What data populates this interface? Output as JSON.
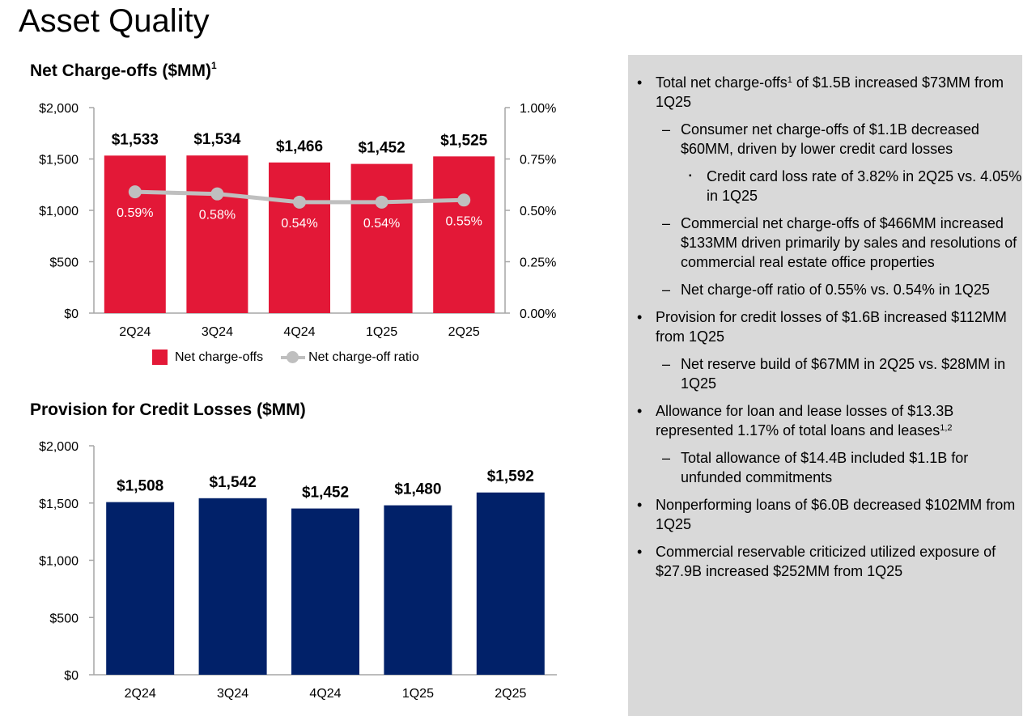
{
  "page": {
    "title": "Asset Quality"
  },
  "chart_data": [
    {
      "type": "bar",
      "title": "Net Charge-offs ($MM)",
      "title_footnote": "1",
      "categories": [
        "2Q24",
        "3Q24",
        "4Q24",
        "1Q25",
        "2Q25"
      ],
      "series": [
        {
          "name": "Net charge-offs",
          "type": "bar",
          "axis": "left",
          "color": "#e31837",
          "values": [
            1533,
            1534,
            1466,
            1452,
            1525
          ],
          "labels": [
            "$1,533",
            "$1,534",
            "$1,466",
            "$1,452",
            "$1,525"
          ]
        },
        {
          "name": "Net charge-off ratio",
          "type": "line",
          "axis": "right",
          "color": "#bfbfbf",
          "values": [
            0.59,
            0.58,
            0.54,
            0.54,
            0.55
          ],
          "labels": [
            "0.59%",
            "0.58%",
            "0.54%",
            "0.54%",
            "0.55%"
          ]
        }
      ],
      "ylim": [
        0,
        2000
      ],
      "yticks": [
        "$0",
        "$500",
        "$1,000",
        "$1,500",
        "$2,000"
      ],
      "y2lim": [
        0,
        1.0
      ],
      "y2ticks": [
        "0.00%",
        "0.25%",
        "0.50%",
        "0.75%",
        "1.00%"
      ],
      "legend": "bottom"
    },
    {
      "type": "bar",
      "title": "Provision for Credit Losses ($MM)",
      "categories": [
        "2Q24",
        "3Q24",
        "4Q24",
        "1Q25",
        "2Q25"
      ],
      "series": [
        {
          "type": "bar",
          "color": "#012169",
          "values": [
            1508,
            1542,
            1452,
            1480,
            1592
          ],
          "labels": [
            "$1,508",
            "$1,542",
            "$1,452",
            "$1,480",
            "$1,592"
          ]
        }
      ],
      "ylim": [
        0,
        2000
      ],
      "yticks": [
        "$0",
        "$500",
        "$1,000",
        "$1,500",
        "$2,000"
      ]
    }
  ],
  "panel": {
    "background": "#d9d9d9",
    "bullets": [
      {
        "level": 1,
        "text": "Total net charge-offs",
        "sup": "1",
        "text_after": " of $1.5B increased $73MM from 1Q25"
      },
      {
        "level": 2,
        "text": "Consumer net charge-offs of $1.1B decreased $60MM, driven by lower credit card losses"
      },
      {
        "level": 3,
        "text": "Credit card loss rate of 3.82% in 2Q25 vs. 4.05% in 1Q25"
      },
      {
        "level": 2,
        "text": "Commercial net charge-offs of $466MM increased $133MM driven primarily by sales and resolutions of commercial real estate office properties"
      },
      {
        "level": 2,
        "text": "Net charge-off ratio of 0.55% vs. 0.54% in 1Q25"
      },
      {
        "level": 1,
        "text": "Provision for credit losses of $1.6B increased $112MM from 1Q25"
      },
      {
        "level": 2,
        "text": "Net reserve build of $67MM in 2Q25 vs. $28MM in 1Q25"
      },
      {
        "level": 1,
        "text": "Allowance for loan and lease losses of $13.3B represented 1.17% of total loans and leases",
        "sup": "1,2",
        "text_after": ""
      },
      {
        "level": 2,
        "text": "Total allowance of $14.4B included $1.1B for unfunded commitments"
      },
      {
        "level": 1,
        "text": "Nonperforming loans of $6.0B decreased $102MM from 1Q25"
      },
      {
        "level": 1,
        "text": "Commercial reservable criticized utilized exposure of $27.9B increased $252MM from 1Q25"
      }
    ]
  }
}
